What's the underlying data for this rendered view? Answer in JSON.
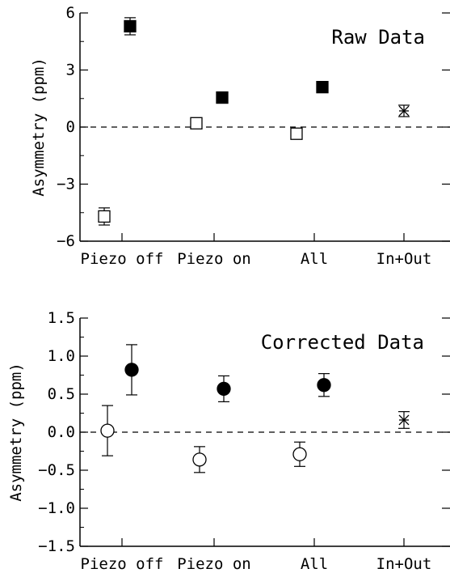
{
  "chart_data": [
    {
      "type": "scatter",
      "title": "Raw Data",
      "ylabel": "Asymmetry (ppm)",
      "xlabel": "",
      "categories": [
        "Piezo off",
        "Piezo on",
        "All",
        "In+Out"
      ],
      "ylim": [
        -6,
        6
      ],
      "yticks": [
        -6,
        -3,
        0,
        3,
        6
      ],
      "ytick_labels": [
        "−6",
        "−3",
        "0",
        "3",
        "6"
      ],
      "grid": false,
      "zero_line": "dashed",
      "series": [
        {
          "marker": "open-square",
          "color": "#000000",
          "points": [
            {
              "category": "Piezo off",
              "y": -4.7,
              "err": 0.45
            },
            {
              "category": "Piezo on",
              "y": 0.2,
              "err": 0.2
            },
            {
              "category": "All",
              "y": -0.35,
              "err": 0.2
            }
          ]
        },
        {
          "marker": "filled-square",
          "color": "#000000",
          "points": [
            {
              "category": "Piezo off",
              "y": 5.3,
              "err": 0.45
            },
            {
              "category": "Piezo on",
              "y": 1.55,
              "err": 0.2
            },
            {
              "category": "All",
              "y": 2.1,
              "err": 0.2
            }
          ]
        },
        {
          "marker": "asterisk",
          "color": "#000000",
          "points": [
            {
              "category": "In+Out",
              "y": 0.85,
              "err": 0.3
            }
          ]
        }
      ]
    },
    {
      "type": "scatter",
      "title": "Corrected Data",
      "ylabel": "Asymmetry (ppm)",
      "xlabel": "",
      "categories": [
        "Piezo off",
        "Piezo on",
        "All",
        "In+Out"
      ],
      "ylim": [
        -1.5,
        1.5
      ],
      "yticks": [
        -1.5,
        -1.0,
        -0.5,
        0.0,
        0.5,
        1.0,
        1.5
      ],
      "ytick_labels": [
        "−1.5",
        "−1.0",
        "−0.5",
        "0.0",
        "0.5",
        "1.0",
        "1.5"
      ],
      "grid": false,
      "zero_line": "dashed",
      "series": [
        {
          "marker": "open-circle",
          "color": "#000000",
          "points": [
            {
              "category": "Piezo off",
              "y": 0.02,
              "err": 0.33
            },
            {
              "category": "Piezo on",
              "y": -0.36,
              "err": 0.17
            },
            {
              "category": "All",
              "y": -0.29,
              "err": 0.16
            }
          ]
        },
        {
          "marker": "filled-circle",
          "color": "#000000",
          "points": [
            {
              "category": "Piezo off",
              "y": 0.82,
              "err": 0.33
            },
            {
              "category": "Piezo on",
              "y": 0.57,
              "err": 0.17
            },
            {
              "category": "All",
              "y": 0.62,
              "err": 0.15
            }
          ]
        },
        {
          "marker": "asterisk",
          "color": "#000000",
          "points": [
            {
              "category": "In+Out",
              "y": 0.16,
              "err": 0.11
            }
          ]
        }
      ]
    }
  ]
}
